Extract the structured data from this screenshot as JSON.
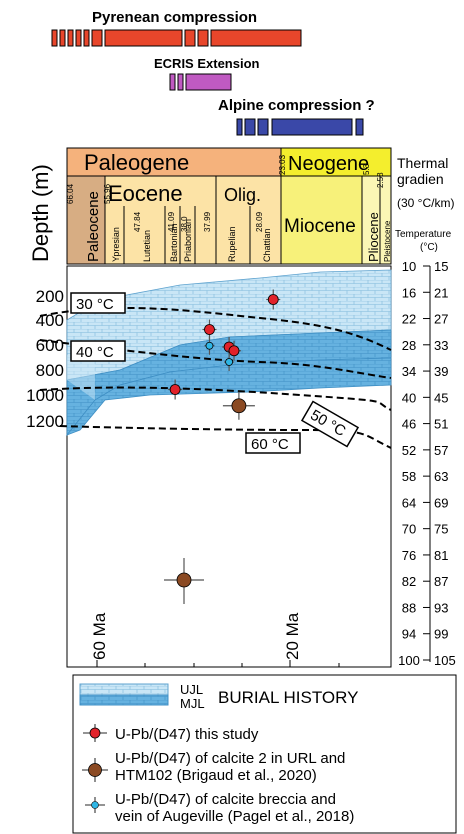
{
  "tectonics": {
    "pyrenean": {
      "label": "Pyrenean compression",
      "color": "#e8462b"
    },
    "ecris": {
      "label": "ECRIS Extension",
      "color": "#c05ac2"
    },
    "alpine": {
      "label": "Alpine compression ?",
      "color": "#3a48a8"
    }
  },
  "timescale": {
    "paleogene": "Paleogene",
    "neogene": "Neogene",
    "eocene": "Eocene",
    "olig": "Olig.",
    "paleocene": "Paleocene",
    "miocene": "Miocene",
    "pliocene": "Pliocene",
    "pleistocene": "Pleistocene",
    "stages": [
      "Ypresian",
      "Lutetian",
      "Bartonian",
      "Priabonian",
      "Rupelian",
      "Chattian"
    ],
    "ages": [
      "66.04",
      "55.96",
      "47.84",
      "41.09",
      "38.0",
      "37.99",
      "28.09",
      "23.03",
      "5.3",
      "2.58"
    ],
    "colors": {
      "paleogene": "#f5b27c",
      "neogene": "#f4ee2d",
      "paleocene": "#d7ad83",
      "eocene": "#fce3a6",
      "miocene": "#f7f17a",
      "pliocene": "#fbf6b5"
    }
  },
  "thermal": {
    "title_line1": "Thermal",
    "title_line2": "gradien",
    "gradient": "(30 °C/km)",
    "temp_label": "Temperature",
    "temp_unit": "(°C)"
  },
  "axis": {
    "ylabel": "Depth (m)",
    "depth_ticks": [
      "200",
      "400",
      "600",
      "800",
      "1000",
      "1200"
    ],
    "middle_scale": [
      "10",
      "16",
      "22",
      "28",
      "34",
      "40",
      "46",
      "52",
      "58",
      "64",
      "70",
      "76",
      "82",
      "88",
      "94",
      "100"
    ],
    "temp_scale": [
      "15",
      "21",
      "27",
      "33",
      "39",
      "45",
      "51",
      "57",
      "63",
      "69",
      "75",
      "81",
      "87",
      "93",
      "99",
      "105"
    ],
    "age_labels": [
      "60 Ma",
      "20 Ma"
    ]
  },
  "isotherms": [
    "30 °C",
    "40 °C",
    "50 °C",
    "60 °C"
  ],
  "legend": {
    "ujl": "UJL",
    "mjl": "MJL",
    "burial": "BURIAL HISTORY",
    "this_study": "U-Pb/(D47) this study",
    "brigaud_line1": "U-Pb/(D47) of calcite 2 in URL and",
    "brigaud_line2": "HTM102 (Brigaud et al., 2020)",
    "pagel_line1": "U-Pb/(D47) of calcite breccia and",
    "pagel_line2": "vein of Augeville (Pagel et al., 2018)"
  },
  "chart_data": {
    "type": "scatter",
    "xlabel": "",
    "ylabel": "Depth (m)",
    "xlim": [
      66.04,
      0
    ],
    "ylim": [
      0,
      1300
    ],
    "series": [
      {
        "name": "U-Pb/(D47) this study",
        "color": "#e1222a",
        "points": [
          [
            44,
            1100
          ],
          [
            37,
            620
          ],
          [
            33,
            760
          ],
          [
            32,
            790
          ],
          [
            24,
            380
          ]
        ]
      },
      {
        "name": "U-Pb/(D47) of calcite 2 in URL and HTM102 (Brigaud et al., 2020)",
        "color": "#8b4a23",
        "points": [
          [
            31,
            1230
          ]
        ]
      },
      {
        "name": "U-Pb/(D47) of calcite breccia and vein of Augeville (Pagel et al., 2018)",
        "color": "#2fb6e5",
        "points": [
          [
            37,
            750
          ],
          [
            33,
            880
          ]
        ]
      }
    ]
  }
}
